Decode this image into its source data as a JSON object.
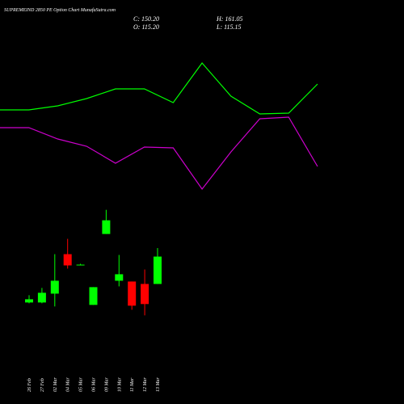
{
  "chart_data": [
    {
      "type": "candlestick",
      "title": "SUPREMEIND 2850 PE Option Chart MunafaSutra.com",
      "header": [
        "C: 150.20",
        "O: 115.20",
        "H: 161.05",
        "L: 115.15"
      ],
      "categories": [
        "26 Feb",
        "27 Feb",
        "02 Mar",
        "04 Mar",
        "05 Mar",
        "06 Mar",
        "09 Mar",
        "10 Mar",
        "11 Mar",
        "12 Mar",
        "13 Mar"
      ],
      "open": [
        91.5,
        91.5,
        102.8,
        153.3,
        139.9,
        88.4,
        179.1,
        119.3,
        118.3,
        115.2,
        115.2
      ],
      "high": [
        100.8,
        110.1,
        153.3,
        172.9,
        141,
        111.1,
        210,
        152.3,
        118.3,
        133.7,
        161.05
      ],
      "low": [
        90.5,
        90.5,
        86.4,
        134.8,
        138.9,
        88.4,
        179.1,
        112.1,
        82.2,
        75,
        115.15
      ],
      "close": [
        95.6,
        103.9,
        119.3,
        138.9,
        139.9,
        111.1,
        196.6,
        127.6,
        87.4,
        89.5,
        150.2
      ],
      "up_color": "#00ff00",
      "down_color": "#ff0000",
      "ylim": [
        65,
        220
      ]
    },
    {
      "type": "line",
      "categories": [
        null,
        null,
        null,
        null,
        null,
        null,
        null,
        null,
        null,
        null,
        null,
        null
      ],
      "series": [
        {
          "color": "#00ff00",
          "values": [
            164,
            164,
            169,
            178,
            190,
            190,
            173,
            222,
            181,
            159,
            160,
            196
          ]
        },
        {
          "color": "#cc00cc",
          "values": [
            142,
            142,
            128,
            119,
            98,
            118,
            117,
            66,
            112,
            153,
            155,
            94
          ]
        }
      ],
      "ylim": [
        0,
        300
      ]
    }
  ]
}
